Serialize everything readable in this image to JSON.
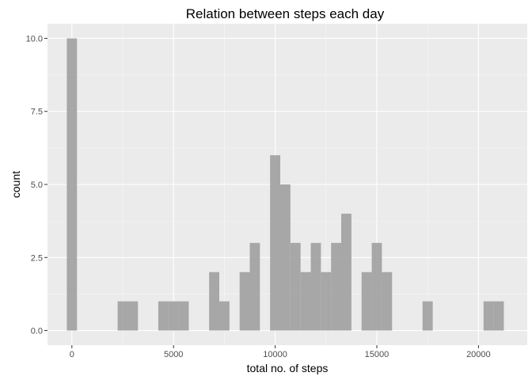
{
  "chart_data": {
    "type": "bar",
    "subtype": "histogram",
    "title": "Relation between steps each day",
    "xlabel": "total no. of steps",
    "ylabel": "count",
    "x_ticks": [
      0,
      5000,
      10000,
      15000,
      20000
    ],
    "x_tick_labels": [
      "0",
      "5000",
      "10000",
      "15000",
      "20000"
    ],
    "y_ticks": [
      0,
      2.5,
      5,
      7.5,
      10
    ],
    "y_tick_labels": [
      "0.0",
      "2.5",
      "5.0",
      "7.5",
      "10.0"
    ],
    "xlim": [
      -1200,
      22400
    ],
    "ylim": [
      -0.5,
      10.5
    ],
    "bin_width": 500,
    "grid": true,
    "colors": {
      "panel": "#EBEBEB",
      "grid_major": "#FFFFFF",
      "bar": "#A3A3A3",
      "text": "#000000",
      "tick_text": "#4D4D4D",
      "tick_mark": "#333333"
    },
    "bins": [
      {
        "start": -250,
        "end": 250,
        "count": 10
      },
      {
        "start": 2250,
        "end": 2750,
        "count": 1
      },
      {
        "start": 2750,
        "end": 3250,
        "count": 1
      },
      {
        "start": 4250,
        "end": 4750,
        "count": 1
      },
      {
        "start": 4750,
        "end": 5250,
        "count": 1
      },
      {
        "start": 5250,
        "end": 5750,
        "count": 1
      },
      {
        "start": 6750,
        "end": 7250,
        "count": 2
      },
      {
        "start": 7250,
        "end": 7750,
        "count": 1
      },
      {
        "start": 8250,
        "end": 8750,
        "count": 2
      },
      {
        "start": 8750,
        "end": 9250,
        "count": 3
      },
      {
        "start": 9750,
        "end": 10250,
        "count": 6
      },
      {
        "start": 10250,
        "end": 10750,
        "count": 5
      },
      {
        "start": 10750,
        "end": 11250,
        "count": 3
      },
      {
        "start": 11250,
        "end": 11750,
        "count": 2
      },
      {
        "start": 11750,
        "end": 12250,
        "count": 3
      },
      {
        "start": 12250,
        "end": 12750,
        "count": 2
      },
      {
        "start": 12750,
        "end": 13250,
        "count": 3
      },
      {
        "start": 13250,
        "end": 13750,
        "count": 4
      },
      {
        "start": 14250,
        "end": 14750,
        "count": 2
      },
      {
        "start": 14750,
        "end": 15250,
        "count": 3
      },
      {
        "start": 15250,
        "end": 15750,
        "count": 2
      },
      {
        "start": 17250,
        "end": 17750,
        "count": 1
      },
      {
        "start": 20250,
        "end": 20750,
        "count": 1
      },
      {
        "start": 20750,
        "end": 21250,
        "count": 1
      }
    ]
  }
}
